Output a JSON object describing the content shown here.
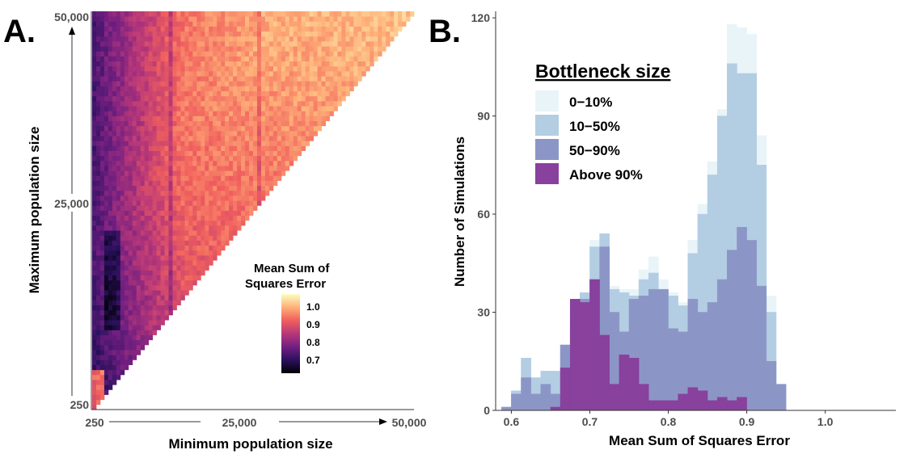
{
  "chart_data": [
    {
      "panel": "A.",
      "type": "heatmap",
      "xlabel": "Minimum population size",
      "ylabel": "Maximum population size",
      "x_ticks": [
        "250",
        "25,000",
        "50,000"
      ],
      "y_ticks": [
        "250",
        "25,000",
        "50,000"
      ],
      "xlim": [
        250,
        50000
      ],
      "ylim": [
        250,
        50000
      ],
      "legend_title_line1": "Mean Sum of",
      "legend_title_line2": "Squares Error",
      "legend_ticks": [
        "1.0",
        "0.9",
        "0.8",
        "0.7"
      ],
      "color_range": [
        0.65,
        1.05
      ],
      "colormap": [
        "#000004",
        "#2c115f",
        "#721f81",
        "#b73779",
        "#f1605d",
        "#feb078",
        "#fcfdbf"
      ],
      "legend_position": "bottom-right",
      "grid": false
    },
    {
      "panel": "B.",
      "type": "bar",
      "subtype": "overlaid histogram",
      "xlabel": "Mean Sum of Squares Error",
      "ylabel": "Number of Simulations",
      "x_ticks": [
        "0.6",
        "0.7",
        "0.8",
        "0.9",
        "1.0"
      ],
      "y_ticks": [
        "0",
        "30",
        "60",
        "90",
        "120"
      ],
      "xlim": [
        0.58,
        1.09
      ],
      "ylim": [
        0,
        122
      ],
      "bin_width": 0.0125,
      "bin_starts": [
        0.5875,
        0.6,
        0.6125,
        0.625,
        0.6375,
        0.65,
        0.6625,
        0.675,
        0.6875,
        0.7,
        0.7125,
        0.725,
        0.7375,
        0.75,
        0.7625,
        0.775,
        0.7875,
        0.8,
        0.8125,
        0.825,
        0.8375,
        0.85,
        0.8625,
        0.875,
        0.8875,
        0.9,
        0.9125,
        0.925,
        0.9375,
        0.95,
        0.9625,
        0.975,
        0.9875,
        1.0,
        1.0125,
        1.025,
        1.0375,
        1.05
      ],
      "legend_title": "Bottleneck size",
      "legend_position": "top-left",
      "series": [
        {
          "name": "0−10%",
          "color": "#e9f4f8",
          "values": [
            0,
            6,
            16,
            10,
            12,
            12,
            20,
            32,
            36,
            52,
            54,
            38,
            37,
            37,
            43,
            47,
            40,
            36,
            33,
            52,
            63,
            76,
            92,
            118,
            117,
            115,
            84,
            35,
            0,
            0,
            0,
            0,
            0,
            0,
            0,
            0,
            0,
            0
          ]
        },
        {
          "name": "10−50%",
          "color": "#b3cde3",
          "values": [
            0,
            6,
            16,
            10,
            12,
            12,
            20,
            30,
            36,
            50,
            54,
            37,
            36,
            35,
            40,
            42,
            37,
            35,
            32,
            48,
            60,
            72,
            90,
            106,
            103,
            103,
            75,
            30,
            6,
            0,
            0,
            0,
            0,
            0,
            0,
            0,
            0,
            0
          ]
        },
        {
          "name": "50−90%",
          "color": "#8c96c6",
          "values": [
            1,
            5,
            10,
            5,
            8,
            5,
            20,
            26,
            34,
            40,
            50,
            30,
            24,
            34,
            35,
            37,
            37,
            25,
            24,
            34,
            30,
            33,
            40,
            49,
            56,
            52,
            38,
            15,
            8,
            0,
            0,
            0,
            0,
            0,
            0,
            0,
            0,
            0
          ]
        },
        {
          "name": "Above 90%",
          "color": "#88419d",
          "values": [
            0,
            0,
            0,
            0,
            0,
            1,
            13,
            34,
            33,
            40,
            23,
            8,
            17,
            16,
            8,
            3,
            3,
            3,
            5,
            7,
            6,
            3,
            4,
            3,
            4,
            0,
            0,
            0,
            0,
            0,
            0,
            0,
            0,
            0,
            0,
            0,
            0,
            0
          ]
        }
      ]
    }
  ]
}
